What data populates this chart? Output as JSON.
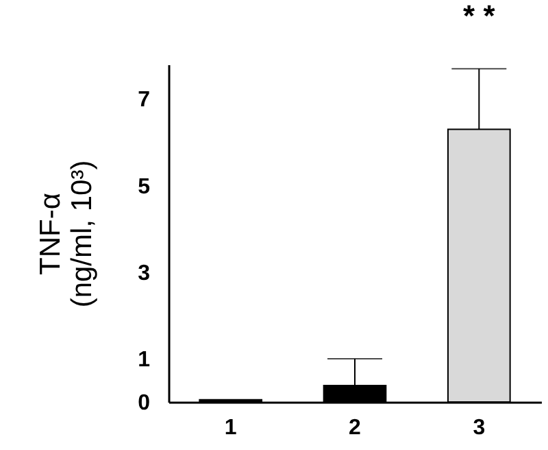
{
  "chart_data": {
    "type": "bar",
    "ylabel": "TNF-α\n(ng/ml, 10³)",
    "categories": [
      "1",
      "2",
      "3"
    ],
    "values": [
      0.05,
      0.38,
      6.3
    ],
    "colors": [
      "#000000",
      "#000000",
      "#d9d9d9"
    ],
    "errors": [
      null,
      [
        0.38,
        1.0
      ],
      [
        6.3,
        7.7
      ]
    ],
    "ylim": [
      0,
      7.8
    ],
    "yticks": [
      0,
      1,
      3,
      5,
      7
    ],
    "annotations": [
      {
        "text": "* *",
        "x": "3",
        "y": 7.7
      }
    ]
  }
}
